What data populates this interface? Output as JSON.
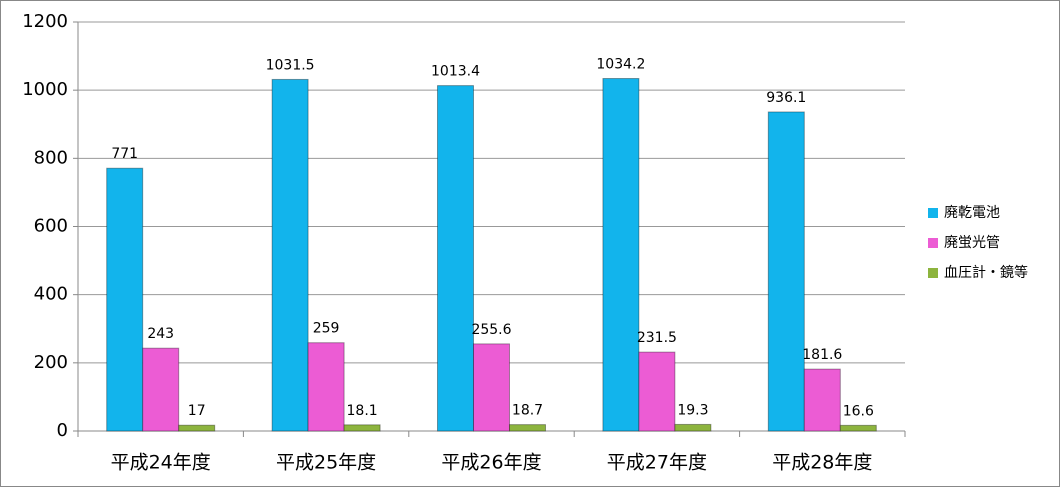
{
  "chart_data": {
    "type": "bar",
    "categories": [
      "平成24年度",
      "平成25年度",
      "平成26年度",
      "平成27年度",
      "平成28年度"
    ],
    "series": [
      {
        "name": "廃乾電池",
        "color": "#12b4ec",
        "values": [
          771,
          1031.5,
          1013.4,
          1034.2,
          936.1
        ]
      },
      {
        "name": "廃蛍光管",
        "color": "#ec5cd4",
        "values": [
          243,
          259,
          255.6,
          231.5,
          181.6
        ]
      },
      {
        "name": "血圧計・鏡等",
        "color": "#8db43e",
        "values": [
          17,
          18.1,
          18.7,
          19.3,
          16.6
        ]
      }
    ],
    "ylim": [
      0,
      1200
    ],
    "yticks": [
      0,
      200,
      400,
      600,
      800,
      1000,
      1200
    ],
    "grid": true,
    "legend": "right"
  }
}
